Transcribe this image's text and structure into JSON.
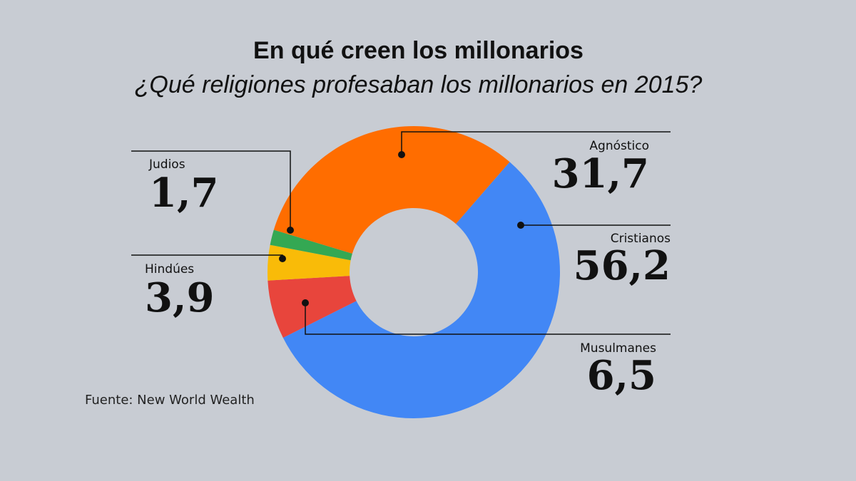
{
  "chart_data": {
    "type": "pie",
    "title": "En qué creen los millonarios",
    "subtitle": "¿Qué religiones profesaban los millonarios en 2015?",
    "slices": [
      {
        "name": "Cristianos",
        "label": "Cristianos",
        "value": 56.2,
        "display": "56,2",
        "color": "#4287f5"
      },
      {
        "name": "Musulmanes",
        "label": "Musulmanes",
        "value": 6.5,
        "display": "6,5",
        "color": "#e8453c"
      },
      {
        "name": "Hindúes",
        "label": "Hindúes",
        "value": 3.9,
        "display": "3,9",
        "color": "#f9bb08"
      },
      {
        "name": "Judios",
        "label": "Judios",
        "value": 1.7,
        "display": "1,7",
        "color": "#34a853"
      },
      {
        "name": "Agnóstico",
        "label": "Agnóstico",
        "value": 31.7,
        "display": "31,7",
        "color": "#ff6d00"
      }
    ]
  },
  "source": "Fuente: New World Wealth"
}
